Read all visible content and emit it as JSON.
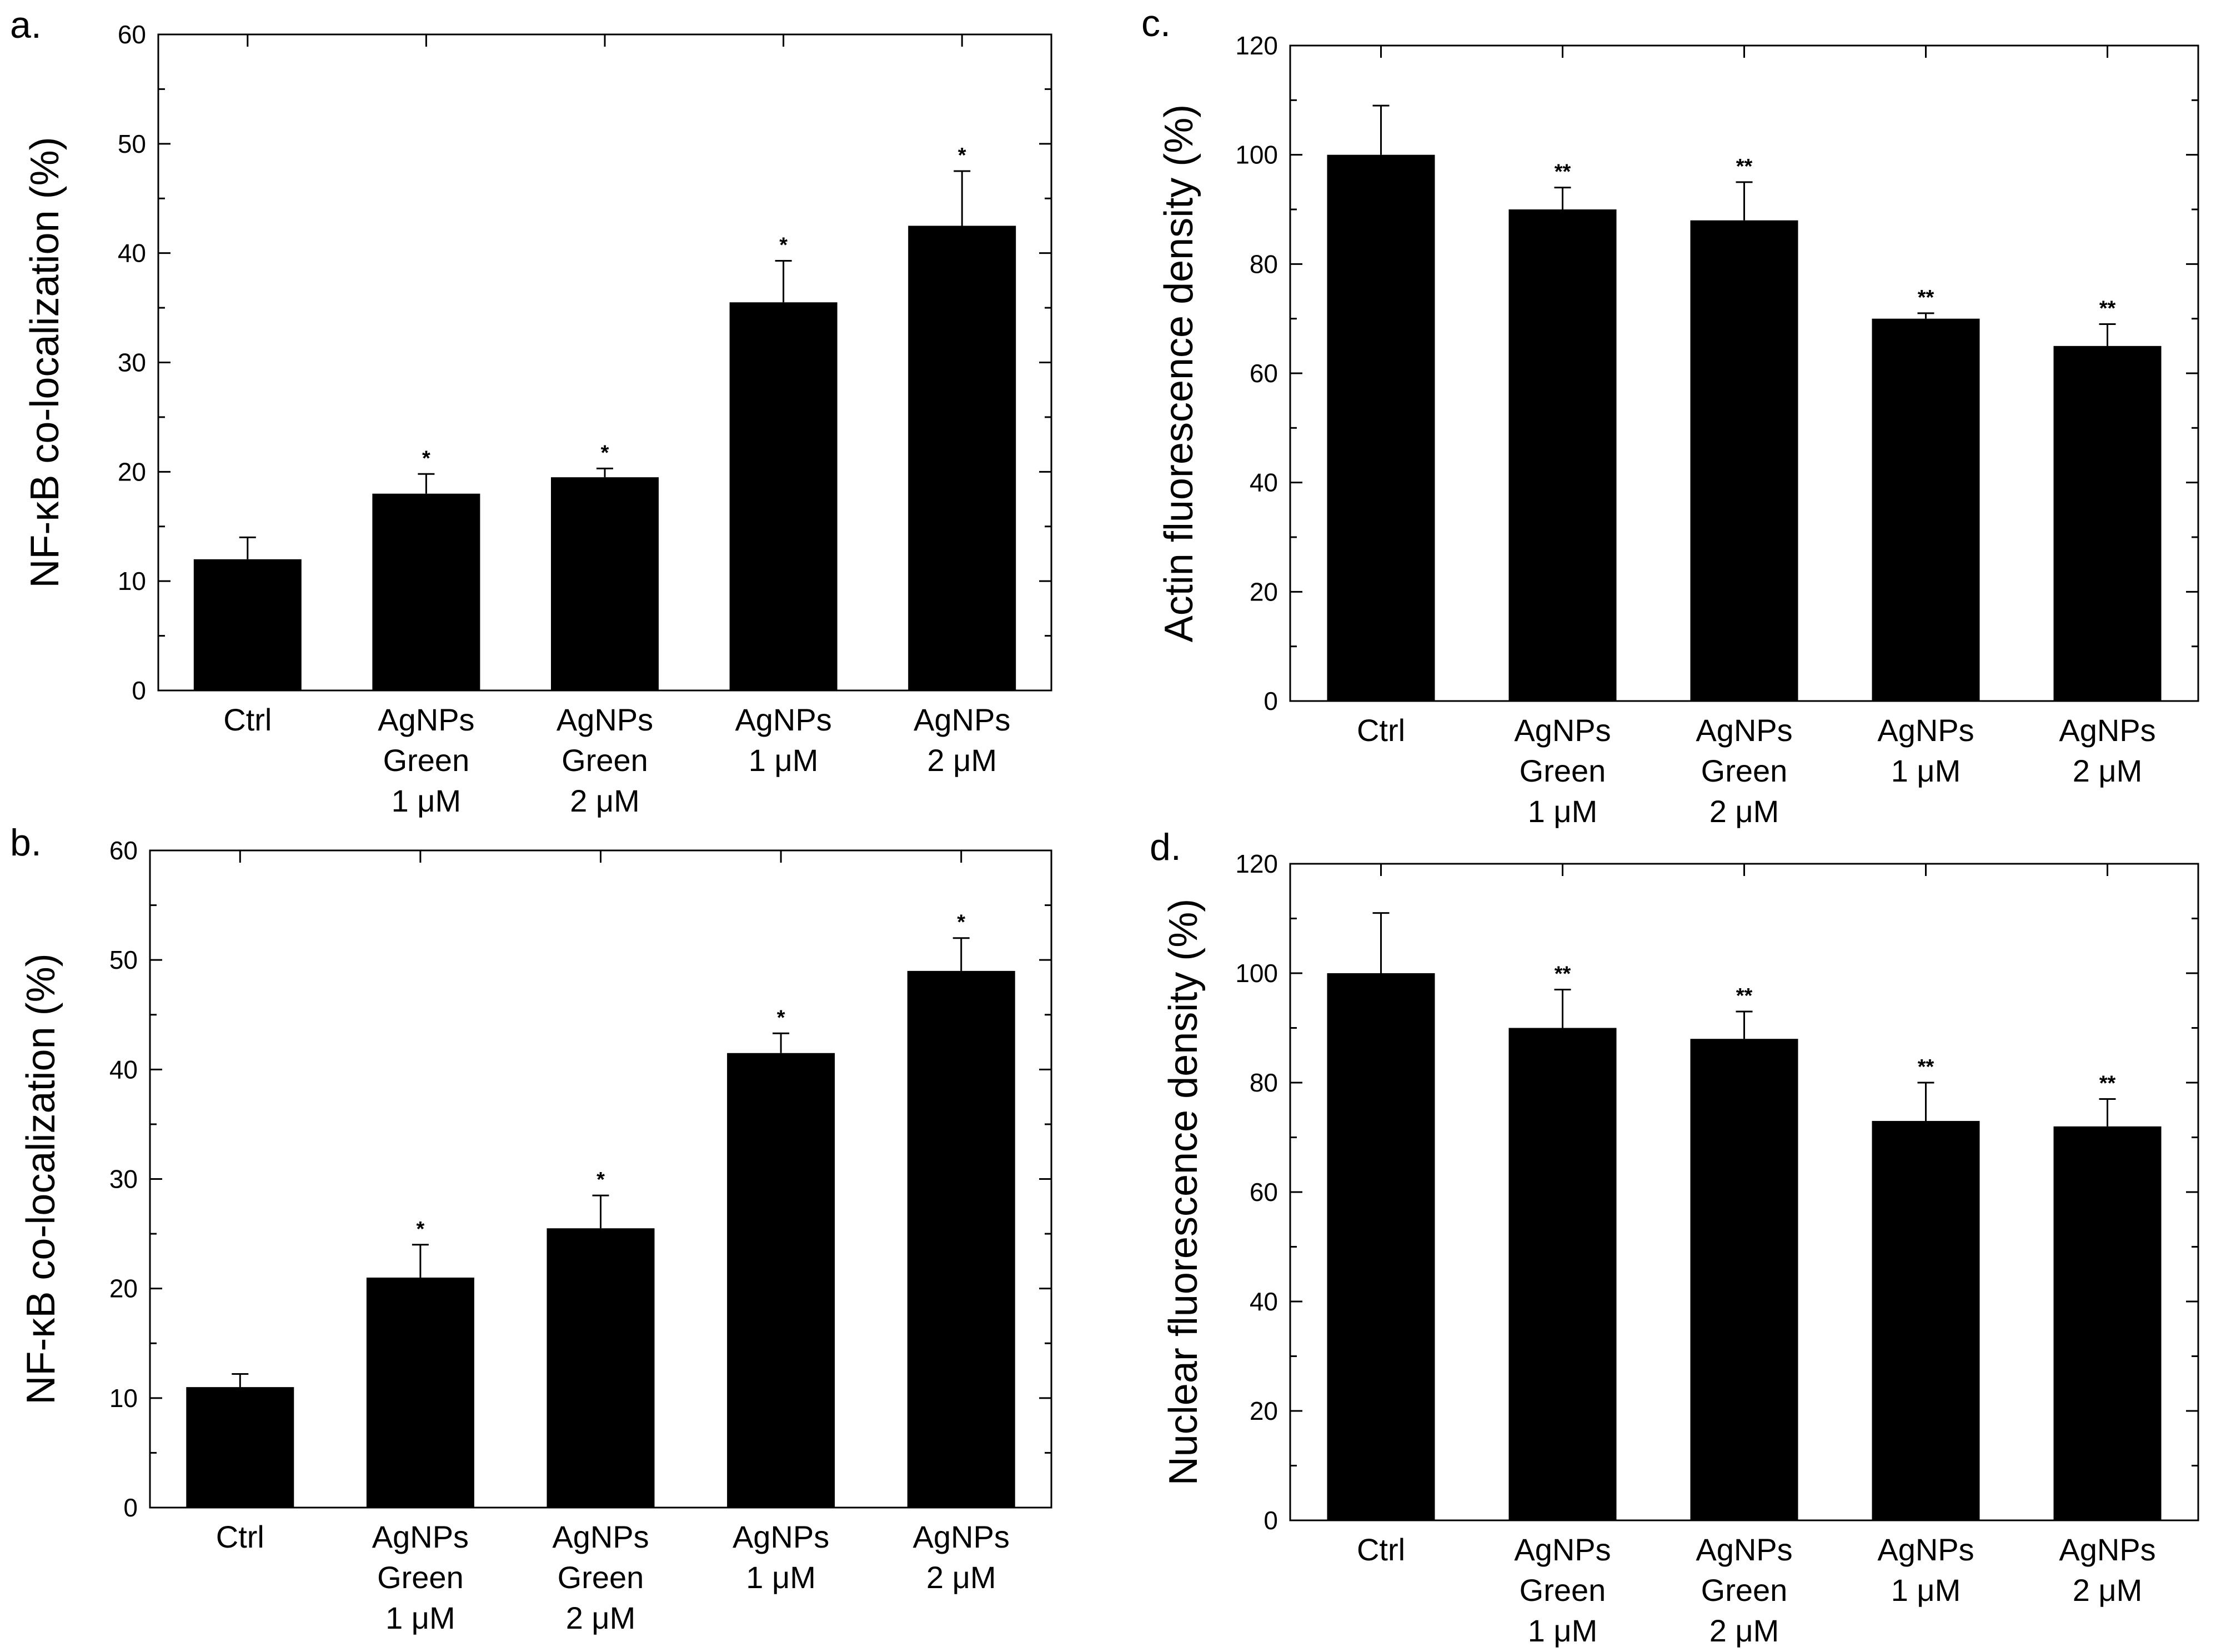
{
  "chart_data": [
    {
      "panel": "a.",
      "type": "bar",
      "ylabel": "NF-κB co-localization (%)",
      "ylim": [
        0,
        60
      ],
      "yticks": [
        0,
        10,
        20,
        30,
        40,
        50,
        60
      ],
      "categories": [
        [
          "Ctrl"
        ],
        [
          "AgNPs",
          "Green",
          "1 μM"
        ],
        [
          "AgNPs",
          "Green",
          "2 μM"
        ],
        [
          "AgNPs",
          "1 μM"
        ],
        [
          "AgNPs",
          "2 μM"
        ]
      ],
      "values": [
        12,
        18,
        19.5,
        35.5,
        42.5
      ],
      "errors": [
        2,
        1.8,
        0.8,
        3.8,
        5
      ],
      "significance": [
        "",
        "*",
        "*",
        "*",
        "*"
      ]
    },
    {
      "panel": "b.",
      "type": "bar",
      "ylabel": "NF-κB co-localization (%)",
      "ylim": [
        0,
        60
      ],
      "yticks": [
        0,
        10,
        20,
        30,
        40,
        50,
        60
      ],
      "categories": [
        [
          "Ctrl"
        ],
        [
          "AgNPs",
          "Green",
          "1 μM"
        ],
        [
          "AgNPs",
          "Green",
          "2 μM"
        ],
        [
          "AgNPs",
          "1 μM"
        ],
        [
          "AgNPs",
          "2 μM"
        ]
      ],
      "values": [
        11,
        21,
        25.5,
        41.5,
        49
      ],
      "errors": [
        1.2,
        3,
        3,
        1.8,
        3
      ],
      "significance": [
        "",
        "*",
        "*",
        "*",
        "*"
      ]
    },
    {
      "panel": "c.",
      "type": "bar",
      "ylabel": "Actin fluorescence density (%)",
      "ylim": [
        0,
        120
      ],
      "yticks": [
        0,
        20,
        40,
        60,
        80,
        100,
        120
      ],
      "categories": [
        [
          "Ctrl"
        ],
        [
          "AgNPs",
          "Green",
          "1 μM"
        ],
        [
          "AgNPs",
          "Green",
          "2 μM"
        ],
        [
          "AgNPs",
          "1 μM"
        ],
        [
          "AgNPs",
          "2 μM"
        ]
      ],
      "values": [
        100,
        90,
        88,
        70,
        65
      ],
      "errors": [
        9,
        4,
        7,
        1,
        4
      ],
      "significance": [
        "",
        "**",
        "**",
        "**",
        "**"
      ]
    },
    {
      "panel": "d.",
      "type": "bar",
      "ylabel": "Nuclear fluorescence density (%)",
      "ylim": [
        0,
        120
      ],
      "yticks": [
        0,
        20,
        40,
        60,
        80,
        100,
        120
      ],
      "categories": [
        [
          "Ctrl"
        ],
        [
          "AgNPs",
          "Green",
          "1 μM"
        ],
        [
          "AgNPs",
          "Green",
          "2 μM"
        ],
        [
          "AgNPs",
          "1 μM"
        ],
        [
          "AgNPs",
          "2 μM"
        ]
      ],
      "values": [
        100,
        90,
        88,
        73,
        72
      ],
      "errors": [
        11,
        7,
        5,
        7,
        5
      ],
      "significance": [
        "",
        "**",
        "**",
        "**",
        "**"
      ]
    }
  ]
}
